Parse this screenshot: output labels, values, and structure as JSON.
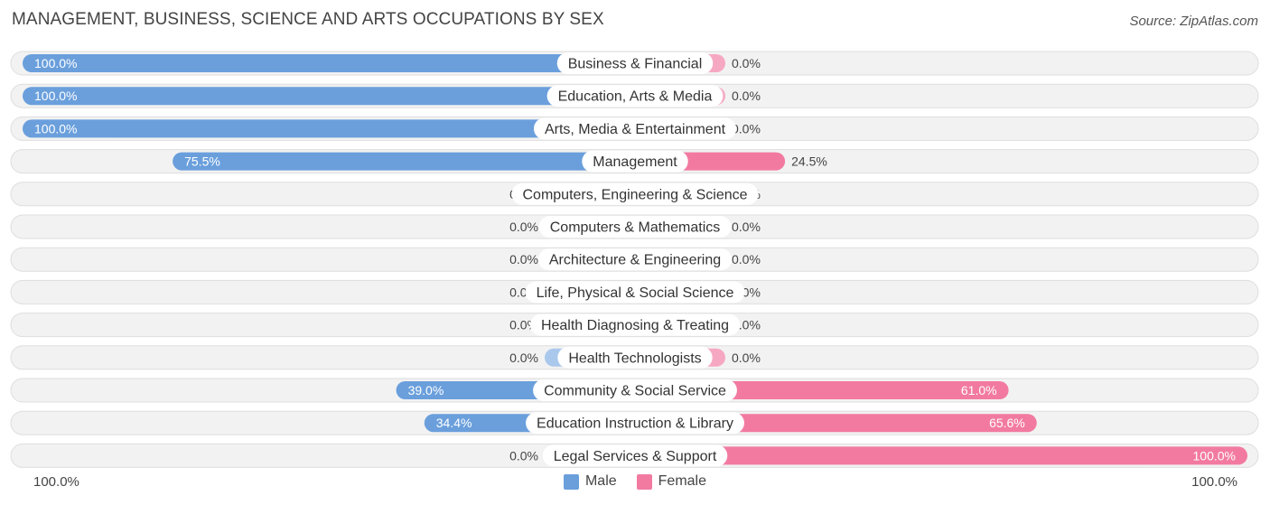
{
  "title": "MANAGEMENT, BUSINESS, SCIENCE AND ARTS OCCUPATIONS BY SEX",
  "source": "Source: ZipAtlas.com",
  "colors": {
    "male": "#6a9fdc",
    "male_light": "#a9c8ec",
    "female": "#f27aa0",
    "female_light": "#f6a8c2",
    "track": "#efefef"
  },
  "chart_data": {
    "type": "bar",
    "orientation": "diverging-horizontal",
    "categories": [
      "Business & Financial",
      "Education, Arts & Media",
      "Arts, Media & Entertainment",
      "Management",
      "Computers, Engineering & Science",
      "Computers & Mathematics",
      "Architecture & Engineering",
      "Life, Physical & Social Science",
      "Health Diagnosing & Treating",
      "Health Technologists",
      "Community & Social Service",
      "Education Instruction & Library",
      "Legal Services & Support"
    ],
    "series": [
      {
        "name": "Male",
        "values": [
          100.0,
          100.0,
          100.0,
          75.5,
          0.0,
          0.0,
          0.0,
          0.0,
          0.0,
          0.0,
          39.0,
          34.4,
          0.0
        ],
        "labels": [
          "100.0%",
          "100.0%",
          "100.0%",
          "75.5%",
          "0.0%",
          "0.0%",
          "0.0%",
          "0.0%",
          "0.0%",
          "0.0%",
          "39.0%",
          "34.4%",
          "0.0%"
        ]
      },
      {
        "name": "Female",
        "values": [
          0.0,
          0.0,
          0.0,
          24.5,
          0.0,
          0.0,
          0.0,
          0.0,
          0.0,
          0.0,
          61.0,
          65.6,
          100.0
        ],
        "labels": [
          "0.0%",
          "0.0%",
          "0.0%",
          "24.5%",
          "0.0%",
          "0.0%",
          "0.0%",
          "0.0%",
          "0.0%",
          "0.0%",
          "61.0%",
          "65.6%",
          "100.0%"
        ]
      }
    ],
    "xlim": [
      -100,
      100
    ],
    "axis_left_label": "100.0%",
    "axis_right_label": "100.0%",
    "legend": [
      "Male",
      "Female"
    ],
    "legend_position": "bottom-center",
    "grid": false
  }
}
